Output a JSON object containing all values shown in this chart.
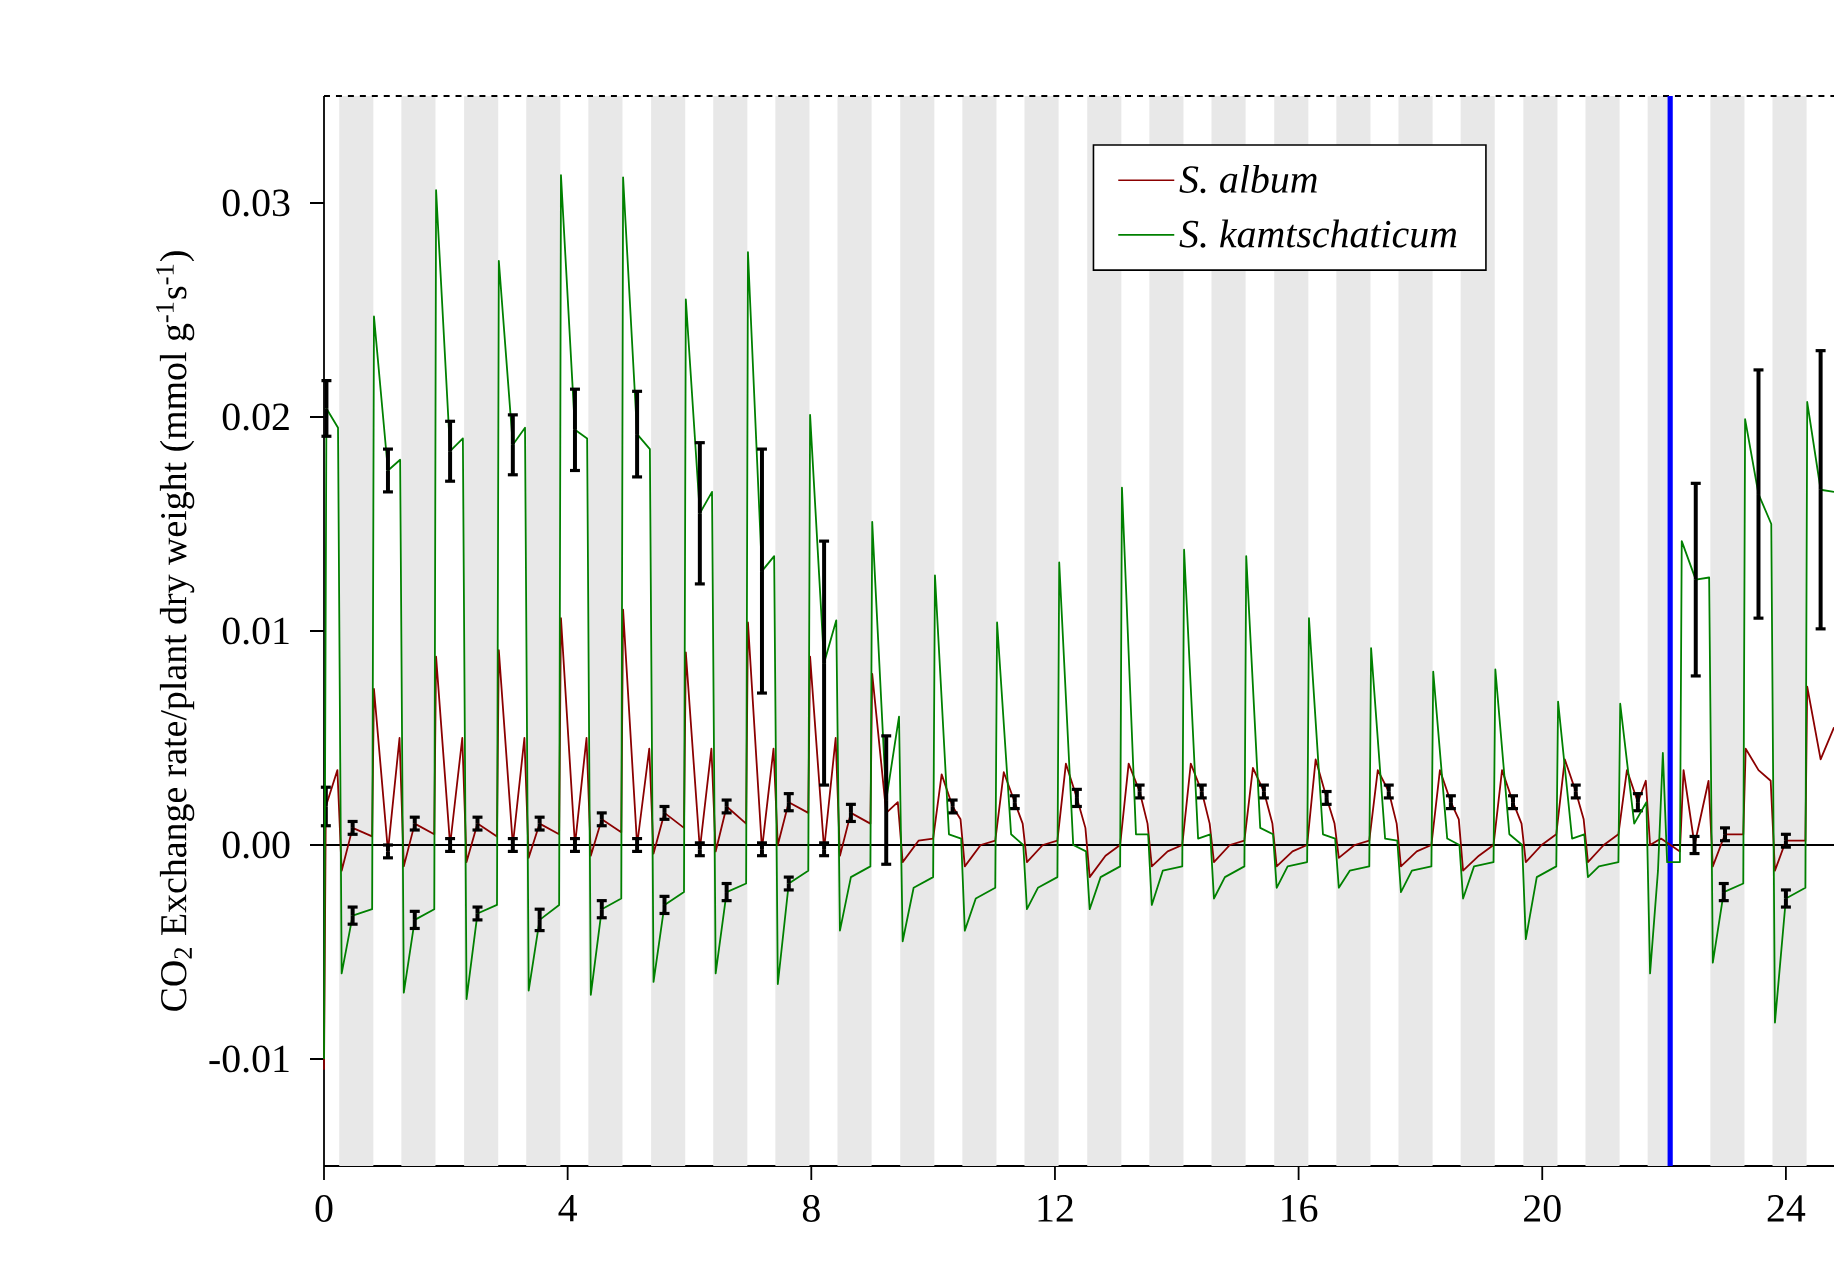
{
  "chart_data": {
    "type": "line",
    "ylabel": "CO$_{2}$ Exchange rate/plant dry weight (mmol g$^{-1}$s$^{-1}$)",
    "xlim": [
      0,
      24.79
    ],
    "ylim": [
      -0.015,
      0.035
    ],
    "xticks": [
      0,
      4,
      8,
      12,
      16,
      20,
      24
    ],
    "yticks": [
      -0.01,
      {
        "value": 0,
        "label": "0.00"
      },
      0.01,
      0.02,
      0.03
    ],
    "legend": "top right",
    "series": [
      {
        "name": "S. album",
        "color": "#8b0000",
        "x": [
          0.0,
          0.03,
          0.22,
          0.29,
          0.47,
          0.79,
          0.82,
          1.05,
          1.24,
          1.31,
          1.49,
          1.81,
          1.84,
          2.07,
          2.27,
          2.34,
          2.52,
          2.84,
          2.87,
          3.1,
          3.29,
          3.36,
          3.54,
          3.86,
          3.89,
          4.12,
          4.31,
          4.38,
          4.56,
          4.88,
          4.91,
          5.14,
          5.34,
          5.41,
          5.59,
          5.91,
          5.94,
          6.17,
          6.36,
          6.43,
          6.61,
          6.93,
          6.96,
          7.19,
          7.38,
          7.45,
          7.63,
          7.95,
          7.98,
          8.21,
          8.4,
          8.47,
          8.65,
          8.97,
          9.0,
          9.23,
          9.42,
          9.5,
          9.76,
          10.0,
          10.14,
          10.32,
          10.45,
          10.52,
          10.78,
          11.02,
          11.16,
          11.34,
          11.47,
          11.54,
          11.8,
          12.04,
          12.18,
          12.36,
          12.5,
          12.57,
          12.83,
          13.07,
          13.21,
          13.39,
          13.52,
          13.59,
          13.85,
          14.09,
          14.23,
          14.41,
          14.54,
          14.61,
          14.87,
          15.11,
          15.25,
          15.43,
          15.57,
          15.64,
          15.9,
          16.14,
          16.28,
          16.46,
          16.59,
          16.66,
          16.92,
          17.16,
          17.3,
          17.48,
          17.61,
          17.68,
          17.94,
          18.18,
          18.32,
          18.5,
          18.63,
          18.7,
          18.96,
          19.2,
          19.34,
          19.52,
          19.66,
          19.73,
          19.99,
          20.23,
          20.37,
          20.55,
          20.68,
          20.75,
          21.01,
          21.25,
          21.39,
          21.57,
          21.7,
          21.77,
          21.95,
          22.26,
          22.32,
          22.5,
          22.73,
          22.8,
          23.0,
          23.3,
          23.34,
          23.55,
          23.75,
          23.82,
          24.0,
          24.32,
          24.35,
          24.57,
          24.79
        ],
        "values": [
          -0.0105,
          0.0018,
          0.0035,
          -0.0012,
          0.0008,
          0.0004,
          0.0073,
          -0.0003,
          0.005,
          -0.001,
          0.001,
          0.0005,
          0.0088,
          0.0,
          0.005,
          -0.0008,
          0.001,
          0.0004,
          0.0091,
          0.0,
          0.005,
          -0.0006,
          0.001,
          0.0005,
          0.0106,
          0.0,
          0.005,
          -0.0005,
          0.0012,
          0.0006,
          0.011,
          0.0,
          0.0045,
          -0.0004,
          0.0015,
          0.0008,
          0.009,
          -0.0002,
          0.0045,
          -0.0003,
          0.0018,
          0.001,
          0.0104,
          -0.0002,
          0.0045,
          0.0,
          0.002,
          0.0015,
          0.0088,
          -0.0002,
          0.005,
          -0.0005,
          0.0015,
          0.001,
          0.008,
          0.0015,
          0.002,
          -0.0008,
          0.0002,
          0.0003,
          0.0033,
          0.0018,
          0.0012,
          -0.001,
          0.0,
          0.0002,
          0.0034,
          0.002,
          0.001,
          -0.0008,
          0.0,
          0.0002,
          0.0038,
          0.0022,
          0.0008,
          -0.0015,
          -0.0005,
          0.0,
          0.0038,
          0.0025,
          0.001,
          -0.001,
          -0.0003,
          0.0,
          0.0038,
          0.0025,
          0.001,
          -0.0008,
          0.0,
          0.0002,
          0.0036,
          0.0025,
          0.001,
          -0.001,
          -0.0003,
          0.0,
          0.004,
          0.0022,
          0.001,
          -0.0006,
          0.0,
          0.0002,
          0.0035,
          0.0025,
          0.001,
          -0.001,
          -0.0003,
          0.0,
          0.0035,
          0.002,
          0.0012,
          -0.0012,
          -0.0005,
          0.0,
          0.0035,
          0.002,
          0.001,
          -0.0008,
          0.0,
          0.0005,
          0.004,
          0.0025,
          0.0012,
          -0.0008,
          0.0,
          0.0005,
          0.0035,
          0.002,
          0.003,
          0.0,
          0.0003,
          -0.0003,
          0.0035,
          0.0,
          0.003,
          -0.001,
          0.0005,
          0.0005,
          0.0045,
          0.0035,
          0.003,
          -0.0012,
          0.0002,
          0.0002,
          0.0074,
          0.004,
          0.0055
        ],
        "errors": [
          null,
          0.0009,
          null,
          null,
          0.0003,
          null,
          null,
          0.0003,
          null,
          null,
          0.0003,
          null,
          null,
          0.0003,
          null,
          null,
          0.0003,
          null,
          null,
          0.0003,
          null,
          null,
          0.0003,
          null,
          null,
          0.0003,
          null,
          null,
          0.0003,
          null,
          null,
          0.0003,
          null,
          null,
          0.0003,
          null,
          null,
          0.0003,
          null,
          null,
          0.0003,
          null,
          null,
          0.0003,
          null,
          null,
          0.0004,
          null,
          null,
          0.0003,
          null,
          null,
          0.0004,
          null,
          null,
          null,
          null,
          null,
          null,
          null,
          null,
          0.0003,
          null,
          null,
          null,
          null,
          null,
          0.0003,
          null,
          null,
          null,
          null,
          null,
          0.0004,
          null,
          null,
          null,
          null,
          null,
          0.0003,
          null,
          null,
          null,
          null,
          null,
          0.0003,
          null,
          null,
          null,
          null,
          null,
          0.0003,
          null,
          null,
          null,
          null,
          null,
          0.0003,
          null,
          null,
          null,
          null,
          null,
          0.0003,
          null,
          null,
          null,
          null,
          null,
          0.0003,
          null,
          null,
          null,
          null,
          null,
          0.0003,
          null,
          null,
          null,
          null,
          null,
          0.0003,
          null,
          null,
          null,
          null,
          null,
          0.0004,
          null,
          null,
          null,
          null,
          null,
          0.0004,
          null,
          null,
          0.0003,
          null,
          null,
          null,
          null,
          null,
          0.0003,
          null,
          null,
          null,
          null
        ]
      },
      {
        "name": "S. kamtschaticum",
        "color": "#008000",
        "x": [
          0.0,
          0.04,
          0.23,
          0.29,
          0.47,
          0.79,
          0.82,
          1.05,
          1.25,
          1.31,
          1.49,
          1.81,
          1.84,
          2.07,
          2.28,
          2.34,
          2.52,
          2.84,
          2.87,
          3.1,
          3.3,
          3.36,
          3.54,
          3.86,
          3.89,
          4.12,
          4.32,
          4.38,
          4.56,
          4.88,
          4.91,
          5.14,
          5.35,
          5.41,
          5.59,
          5.91,
          5.94,
          6.17,
          6.37,
          6.43,
          6.61,
          6.93,
          6.96,
          7.19,
          7.39,
          7.45,
          7.63,
          7.95,
          7.98,
          8.21,
          8.41,
          8.47,
          8.65,
          8.97,
          9.0,
          9.23,
          9.44,
          9.5,
          9.68,
          10.0,
          10.03,
          10.26,
          10.46,
          10.52,
          10.7,
          11.02,
          11.05,
          11.28,
          11.48,
          11.54,
          11.72,
          12.04,
          12.07,
          12.3,
          12.51,
          12.57,
          12.75,
          13.07,
          13.1,
          13.33,
          13.53,
          13.59,
          13.77,
          14.09,
          14.12,
          14.35,
          14.55,
          14.61,
          14.79,
          15.11,
          15.14,
          15.37,
          15.58,
          15.64,
          15.82,
          16.14,
          16.17,
          16.4,
          16.6,
          16.66,
          16.84,
          17.16,
          17.19,
          17.42,
          17.62,
          17.68,
          17.86,
          18.18,
          18.21,
          18.44,
          18.64,
          18.7,
          18.88,
          19.2,
          19.23,
          19.46,
          19.67,
          19.73,
          19.91,
          20.23,
          20.26,
          20.49,
          20.69,
          20.75,
          20.93,
          21.25,
          21.28,
          21.51,
          21.71,
          21.77,
          21.9,
          21.98,
          22.05,
          22.26,
          22.29,
          22.52,
          22.74,
          22.8,
          22.98,
          23.3,
          23.33,
          23.55,
          23.76,
          23.82,
          24.0,
          24.32,
          24.35,
          24.57,
          24.79
        ],
        "values": [
          -0.01,
          0.0204,
          0.0195,
          -0.006,
          -0.0033,
          -0.003,
          0.0247,
          0.0175,
          0.018,
          -0.0069,
          -0.0035,
          -0.003,
          0.0306,
          0.0184,
          0.019,
          -0.0072,
          -0.0032,
          -0.0028,
          0.0273,
          0.0187,
          0.0195,
          -0.0068,
          -0.0035,
          -0.0028,
          0.0313,
          0.0194,
          0.019,
          -0.007,
          -0.003,
          -0.0025,
          0.0312,
          0.0192,
          0.0185,
          -0.0064,
          -0.0028,
          -0.0022,
          0.0255,
          0.0155,
          0.0165,
          -0.006,
          -0.0022,
          -0.0018,
          0.0277,
          0.0128,
          0.0135,
          -0.0065,
          -0.0018,
          -0.0012,
          0.0201,
          0.0085,
          0.0105,
          -0.004,
          -0.0015,
          -0.001,
          0.0151,
          0.0021,
          0.006,
          -0.0045,
          -0.002,
          -0.0015,
          0.0126,
          0.0005,
          0.0003,
          -0.004,
          -0.0025,
          -0.002,
          0.0104,
          0.0005,
          0.0,
          -0.003,
          -0.002,
          -0.0015,
          0.0132,
          0.0,
          -0.0003,
          -0.003,
          -0.0015,
          -0.001,
          0.0167,
          0.0005,
          0.0005,
          -0.0028,
          -0.0012,
          -0.001,
          0.0138,
          0.0003,
          0.0005,
          -0.0025,
          -0.0015,
          -0.001,
          0.0135,
          0.0008,
          0.0005,
          -0.002,
          -0.001,
          -0.0008,
          0.0106,
          0.0005,
          0.0003,
          -0.002,
          -0.0012,
          -0.001,
          0.0092,
          0.0003,
          0.0002,
          -0.0022,
          -0.0012,
          -0.001,
          0.0081,
          0.0003,
          0.0,
          -0.0025,
          -0.001,
          -0.0008,
          0.0082,
          0.0005,
          0.0,
          -0.0044,
          -0.0015,
          -0.001,
          0.0067,
          0.0003,
          0.0005,
          -0.0015,
          -0.001,
          -0.0008,
          0.0066,
          0.001,
          0.002,
          -0.006,
          -0.0012,
          0.0043,
          -0.0008,
          -0.0008,
          0.0142,
          0.0124,
          0.0125,
          -0.0055,
          -0.0022,
          -0.0018,
          0.0199,
          0.0164,
          0.015,
          -0.0083,
          -0.0025,
          -0.002,
          0.0207,
          0.0166,
          0.0165
        ],
        "errors": [
          null,
          0.0013,
          null,
          null,
          0.0004,
          null,
          null,
          0.001,
          null,
          null,
          0.0004,
          null,
          null,
          0.0014,
          null,
          null,
          0.0003,
          null,
          null,
          0.0014,
          null,
          null,
          0.0005,
          null,
          null,
          0.0019,
          null,
          null,
          0.0004,
          null,
          null,
          0.002,
          null,
          null,
          0.0004,
          null,
          null,
          0.0033,
          null,
          null,
          0.0004,
          null,
          null,
          0.0057,
          null,
          null,
          0.0003,
          null,
          null,
          0.0057,
          null,
          null,
          null,
          null,
          null,
          0.003,
          null,
          null,
          null,
          null,
          null,
          null,
          null,
          null,
          null,
          null,
          null,
          null,
          null,
          null,
          null,
          null,
          null,
          null,
          null,
          null,
          null,
          null,
          null,
          null,
          null,
          null,
          null,
          null,
          null,
          null,
          null,
          null,
          null,
          null,
          null,
          null,
          null,
          null,
          null,
          null,
          null,
          null,
          null,
          null,
          null,
          null,
          null,
          null,
          null,
          null,
          null,
          null,
          null,
          null,
          null,
          null,
          null,
          null,
          null,
          null,
          null,
          null,
          null,
          null,
          null,
          null,
          null,
          null,
          null,
          null,
          null,
          null,
          null,
          null,
          null,
          null,
          null,
          null,
          null,
          0.0045,
          null,
          null,
          0.0004,
          null,
          null,
          0.0058,
          null,
          null,
          0.0004,
          null,
          null,
          0.0065,
          null
        ]
      }
    ],
    "ref_lines": [
      {
        "axis": "y",
        "value": 0,
        "color": "#000000"
      },
      {
        "axis": "y",
        "value": 0.035,
        "color": "#000000",
        "line_style": "dashed"
      },
      {
        "axis": "x",
        "value": 22.1,
        "color": "#0000ff"
      }
    ],
    "bands": [
      {
        "axis": "x",
        "from": 0.25,
        "to": 0.81,
        "color": "#e8e8e8"
      },
      {
        "axis": "x",
        "from": 1.27,
        "to": 1.83,
        "color": "#e8e8e8"
      },
      {
        "axis": "x",
        "from": 2.3,
        "to": 2.86,
        "color": "#e8e8e8"
      },
      {
        "axis": "x",
        "from": 3.32,
        "to": 3.88,
        "color": "#e8e8e8"
      },
      {
        "axis": "x",
        "from": 4.34,
        "to": 4.9,
        "color": "#e8e8e8"
      },
      {
        "axis": "x",
        "from": 5.37,
        "to": 5.93,
        "color": "#e8e8e8"
      },
      {
        "axis": "x",
        "from": 6.39,
        "to": 6.95,
        "color": "#e8e8e8"
      },
      {
        "axis": "x",
        "from": 7.41,
        "to": 7.97,
        "color": "#e8e8e8"
      },
      {
        "axis": "x",
        "from": 8.43,
        "to": 8.99,
        "color": "#e8e8e8"
      },
      {
        "axis": "x",
        "from": 9.46,
        "to": 10.02,
        "color": "#e8e8e8"
      },
      {
        "axis": "x",
        "from": 10.48,
        "to": 11.04,
        "color": "#e8e8e8"
      },
      {
        "axis": "x",
        "from": 11.5,
        "to": 12.06,
        "color": "#e8e8e8"
      },
      {
        "axis": "x",
        "from": 12.53,
        "to": 13.09,
        "color": "#e8e8e8"
      },
      {
        "axis": "x",
        "from": 13.55,
        "to": 14.11,
        "color": "#e8e8e8"
      },
      {
        "axis": "x",
        "from": 14.57,
        "to": 15.13,
        "color": "#e8e8e8"
      },
      {
        "axis": "x",
        "from": 15.6,
        "to": 16.16,
        "color": "#e8e8e8"
      },
      {
        "axis": "x",
        "from": 16.62,
        "to": 17.18,
        "color": "#e8e8e8"
      },
      {
        "axis": "x",
        "from": 17.64,
        "to": 18.2,
        "color": "#e8e8e8"
      },
      {
        "axis": "x",
        "from": 18.66,
        "to": 19.22,
        "color": "#e8e8e8"
      },
      {
        "axis": "x",
        "from": 19.69,
        "to": 20.25,
        "color": "#e8e8e8"
      },
      {
        "axis": "x",
        "from": 20.71,
        "to": 21.27,
        "color": "#e8e8e8"
      },
      {
        "axis": "x",
        "from": 21.73,
        "to": 22.1,
        "color": "#e8e8e8"
      },
      {
        "axis": "x",
        "from": 22.76,
        "to": 23.32,
        "color": "#e8e8e8"
      },
      {
        "axis": "x",
        "from": 23.78,
        "to": 24.34,
        "color": "#e8e8e8"
      }
    ]
  }
}
